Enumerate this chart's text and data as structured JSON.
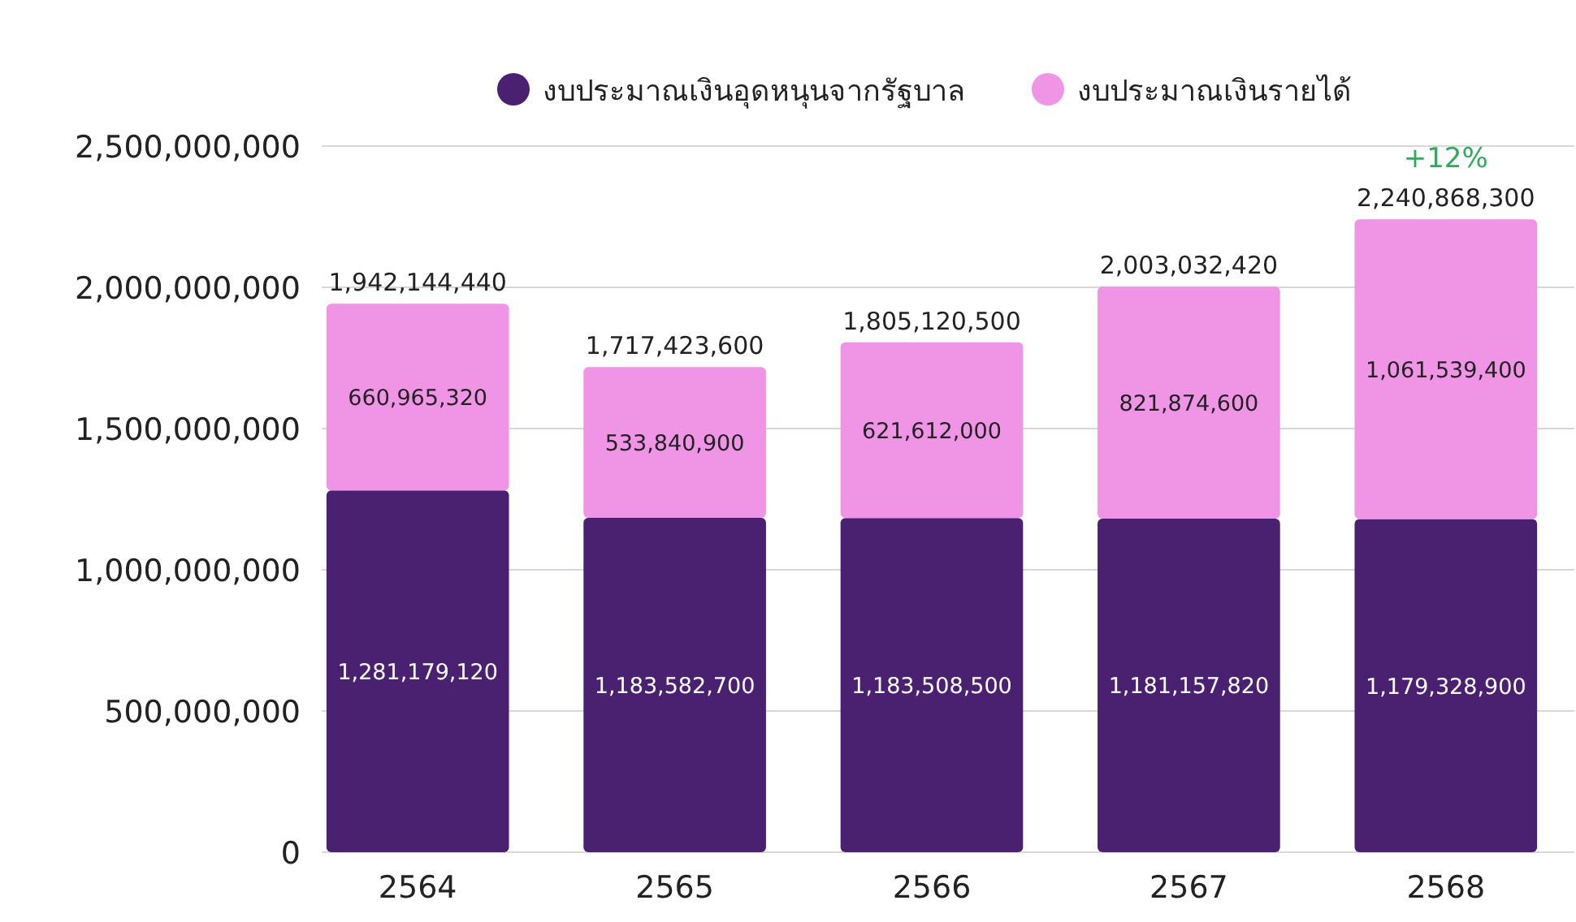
{
  "chart_data": {
    "type": "bar",
    "stacked": true,
    "categories": [
      "2564",
      "2565",
      "2566",
      "2567",
      "2568"
    ],
    "series": [
      {
        "name": "งบประมาณเงินอุดหนุนจากรัฐบาล",
        "color": "#4a2070",
        "values": [
          1281179120,
          1183582700,
          1183508500,
          1181157820,
          1179328900
        ],
        "value_labels": [
          "1,281,179,120",
          "1,183,582,700",
          "1,183,508,500",
          "1,181,157,820",
          "1,179,328,900"
        ]
      },
      {
        "name": "งบประมาณเงินรายได้",
        "color": "#f095e6",
        "values": [
          660965320,
          533840900,
          621612000,
          821874600,
          1061539400
        ],
        "value_labels": [
          "660,965,320",
          "533,840,900",
          "621,612,000",
          "821,874,600",
          "1,061,539,400"
        ]
      }
    ],
    "ylim": [
      0,
      2500000000
    ],
    "yticks": [
      {
        "value": 0,
        "label": "0"
      },
      {
        "value": 500000000,
        "label": "500,000,000"
      },
      {
        "value": 1000000000,
        "label": "1,000,000,000"
      },
      {
        "value": 1500000000,
        "label": "1,500,000,000"
      },
      {
        "value": 2000000000,
        "label": "2,000,000,000"
      },
      {
        "value": 2500000000,
        "label": "2,500,000,000"
      }
    ],
    "grid": "y",
    "legend": "top",
    "totals": [
      "1,942,144,440",
      "1,717,423,600",
      "1,805,120,500",
      "2,003,032,420",
      "2,240,868,300"
    ],
    "annotations": [
      "+12%"
    ]
  }
}
